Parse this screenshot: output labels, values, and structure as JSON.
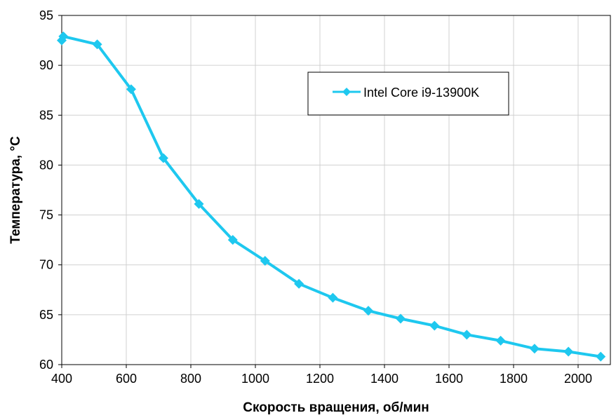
{
  "chart_data": {
    "type": "line",
    "title": "",
    "xlabel": "Скорость вращения, об/мин",
    "ylabel": "Температура, °С",
    "xlim": [
      400,
      2100
    ],
    "ylim": [
      60,
      95
    ],
    "xticks": [
      400,
      600,
      800,
      1000,
      1200,
      1400,
      1600,
      1800,
      2000
    ],
    "yticks": [
      60,
      65,
      70,
      75,
      80,
      85,
      90,
      95
    ],
    "grid": true,
    "legend_position": "top-right",
    "series": [
      {
        "name": "Intel Core i9-13900K",
        "color": "#1ec8ef",
        "marker": "diamond",
        "x": [
          400,
          405,
          510,
          615,
          715,
          825,
          930,
          1030,
          1135,
          1240,
          1350,
          1450,
          1555,
          1655,
          1760,
          1865,
          1970,
          2070
        ],
        "y": [
          92.5,
          92.9,
          92.1,
          87.6,
          80.7,
          76.1,
          72.5,
          70.4,
          68.1,
          66.7,
          65.4,
          64.6,
          63.9,
          63.0,
          62.4,
          61.6,
          61.3,
          60.8
        ]
      }
    ]
  }
}
